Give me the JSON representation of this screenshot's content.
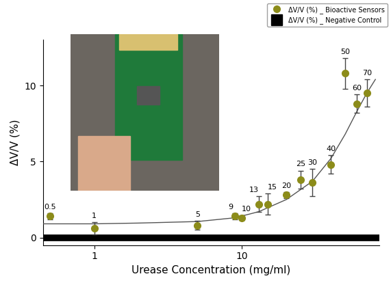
{
  "chart_data": {
    "type": "scatter",
    "x_label": "Urease Concentration (mg/ml)",
    "y_label": "ΔV/V (%)",
    "log": "x",
    "legend": "upper right",
    "xlim": [
      0.45,
      85
    ],
    "xticks": [
      1,
      10
    ],
    "ylim": [
      -0.5,
      13
    ],
    "yticks": [
      0,
      5,
      10
    ],
    "series": [
      {
        "name": "ΔV/V (%) _ Bioactive Sensors",
        "type": "scatter",
        "color": "#8c8c1a",
        "marker": "circle",
        "x": [
          0.5,
          1,
          5,
          9,
          10,
          13,
          15,
          20,
          25,
          30,
          40,
          50,
          60,
          70
        ],
        "values": [
          1.4,
          0.6,
          0.8,
          1.4,
          1.3,
          2.2,
          2.2,
          2.8,
          3.8,
          3.6,
          4.8,
          10.8,
          8.8,
          9.5
        ],
        "errors": [
          0.2,
          0.4,
          0.3,
          0.2,
          0.15,
          0.5,
          0.7,
          0.2,
          0.6,
          0.9,
          0.6,
          1.0,
          0.6,
          0.9
        ],
        "point_labels": [
          "0.5",
          "1",
          "5",
          "9",
          "10",
          "13",
          "15",
          "20",
          "25",
          "30",
          "40",
          "50",
          "60",
          "70"
        ]
      },
      {
        "name": "ΔV/V (%) _ Negative Control",
        "type": "line",
        "color": "#000000",
        "line_style": "solid",
        "x": [
          0.45,
          85
        ],
        "values": [
          0,
          0
        ]
      },
      {
        "type": "line",
        "color": "#555555",
        "line_style": "solid",
        "x": [
          0.45,
          1,
          2,
          5,
          9,
          13,
          20,
          30,
          40,
          50,
          60,
          70,
          80
        ],
        "values": [
          0.9,
          0.9,
          0.95,
          1.05,
          1.3,
          1.7,
          2.5,
          3.7,
          5.2,
          6.8,
          8.3,
          9.5,
          10.4
        ]
      }
    ]
  }
}
